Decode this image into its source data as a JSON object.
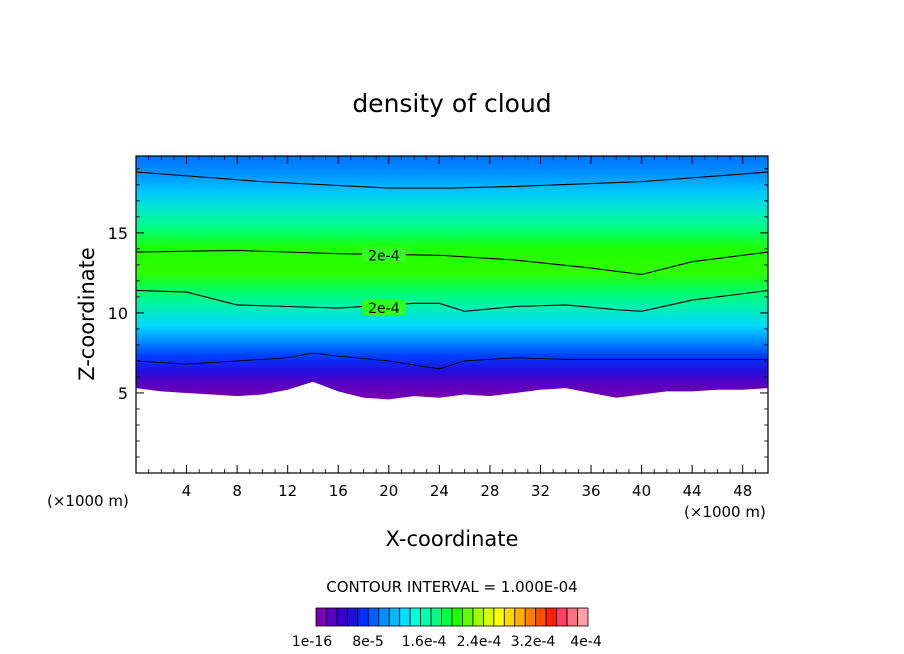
{
  "chart_data": {
    "type": "heatmap",
    "title": "density of cloud",
    "xlabel": "X-coordinate",
    "ylabel": "Z-coordinate",
    "x_unit_left": "(×1000 m)",
    "x_unit_right": "(×1000 m)",
    "xlim": [
      0,
      50
    ],
    "ylim": [
      0,
      19.8
    ],
    "x_ticks": [
      4,
      8,
      12,
      16,
      20,
      24,
      28,
      32,
      36,
      40,
      44,
      48
    ],
    "y_ticks": [
      5,
      10,
      15
    ],
    "contour_interval_text": "CONTOUR INTERVAL = 1.000E-04",
    "contour_labels": [
      {
        "text": "2e-4",
        "x": 17,
        "z": 13.6
      },
      {
        "text": "2e-4",
        "x": 17,
        "z": 10.3
      }
    ],
    "colorbar": {
      "tick_labels": [
        "1e-16",
        "8e-5",
        "1.6e-4",
        "2.4e-4",
        "3.2e-4",
        "4e-4"
      ],
      "colors": [
        "#7a00b0",
        "#5a00c0",
        "#3a00d0",
        "#2010e0",
        "#0030ff",
        "#0060ff",
        "#0090ff",
        "#00b8ff",
        "#00e0ff",
        "#00ffe0",
        "#00ffb0",
        "#00ff80",
        "#00ff40",
        "#20ff00",
        "#60ff00",
        "#a0ff00",
        "#d8ff00",
        "#ffff00",
        "#ffd800",
        "#ffb000",
        "#ff8000",
        "#ff5000",
        "#ff2000",
        "#ff4060",
        "#ff7080",
        "#ffa0a8"
      ]
    },
    "cloud_base": {
      "x": [
        0,
        2,
        4,
        6,
        8,
        10,
        12,
        14,
        16,
        18,
        20,
        22,
        24,
        26,
        28,
        30,
        32,
        34,
        36,
        38,
        40,
        42,
        44,
        46,
        48,
        50
      ],
      "z": [
        5.3,
        5.1,
        5.0,
        4.9,
        4.8,
        4.9,
        5.2,
        5.7,
        5.1,
        4.7,
        4.6,
        4.8,
        4.7,
        4.9,
        4.8,
        5.0,
        5.2,
        5.3,
        5.0,
        4.7,
        4.9,
        5.1,
        5.1,
        5.2,
        5.2,
        5.3
      ]
    },
    "contour_lines": [
      {
        "x": [
          0,
          10,
          20,
          25,
          30,
          40,
          50
        ],
        "z": [
          18.8,
          18.2,
          17.8,
          17.8,
          17.9,
          18.2,
          18.8
        ]
      },
      {
        "x": [
          0,
          8,
          16,
          24,
          30,
          36,
          40,
          44,
          50
        ],
        "z": [
          13.8,
          13.9,
          13.7,
          13.6,
          13.3,
          12.8,
          12.4,
          13.2,
          13.8
        ]
      },
      {
        "x": [
          0,
          4,
          8,
          12,
          16,
          22,
          24,
          26,
          30,
          34,
          38,
          40,
          44,
          50
        ],
        "z": [
          11.4,
          11.3,
          10.5,
          10.4,
          10.3,
          10.6,
          10.6,
          10.1,
          10.4,
          10.5,
          10.2,
          10.1,
          10.8,
          11.4
        ]
      },
      {
        "x": [
          0,
          4,
          8,
          12,
          14,
          16,
          20,
          24,
          26,
          30,
          34,
          38,
          42,
          46,
          50
        ],
        "z": [
          7.0,
          6.8,
          7.0,
          7.2,
          7.5,
          7.3,
          7.0,
          6.5,
          7.0,
          7.2,
          7.1,
          7.1,
          7.1,
          7.1,
          7.1
        ]
      }
    ]
  }
}
